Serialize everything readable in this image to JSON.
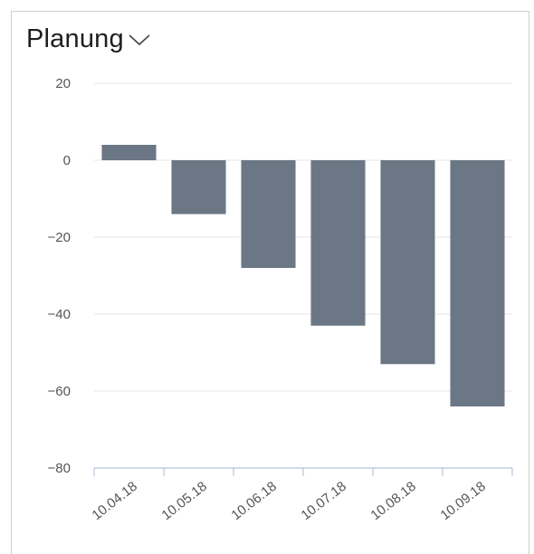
{
  "widget": {
    "title": "Planung",
    "dropdown_icon": "chevron-down-icon"
  },
  "chart_data": {
    "type": "bar",
    "categories": [
      "10.04.18",
      "10.05.18",
      "10.06.18",
      "10.07.18",
      "10.08.18",
      "10.09.18"
    ],
    "values": [
      4,
      -14,
      -28,
      -43,
      -53,
      -64
    ],
    "yticks": [
      20,
      0,
      -20,
      -40,
      -60,
      -80
    ],
    "ylim": [
      -80,
      20
    ],
    "title": "",
    "xlabel": "",
    "ylabel": "",
    "grid": true,
    "bar_color": "#6b7785",
    "grid_color": "#e6e6e6",
    "axis_color": "#b7c4e0"
  }
}
